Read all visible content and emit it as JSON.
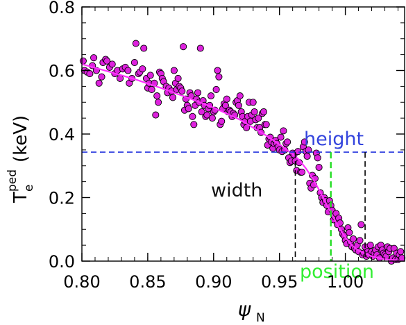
{
  "chart_data": {
    "type": "scatter",
    "xlim": [
      0.8,
      1.045
    ],
    "ylim": [
      0.0,
      0.8
    ],
    "xticks": [
      "0.80",
      "0.85",
      "0.90",
      "0.95",
      "1.00"
    ],
    "xtick_values": [
      0.8,
      0.85,
      0.9,
      0.95,
      1.0
    ],
    "yticks": [
      "0.0",
      "0.2",
      "0.4",
      "0.6",
      "0.8"
    ],
    "ytick_values": [
      0.0,
      0.2,
      0.4,
      0.6,
      0.8
    ],
    "xlabel": "ψ",
    "xlabel_sub": "N",
    "ylabel": "T",
    "ylabel_sub": "e",
    "ylabel_sup": "ped",
    "ylabel_unit": "(keV)",
    "grid": false,
    "colors": {
      "points": "#dd22dd",
      "fit": "#ff33ff",
      "height_line": "#2233dd",
      "width_lines": "#000000",
      "position_line": "#22dd22",
      "height_text": "#3344dd",
      "width_text": "#111111",
      "position_text": "#33ee33"
    },
    "annotations": {
      "height": {
        "label": "height",
        "y": 0.343
      },
      "width": {
        "label": "width",
        "x_left": 0.962,
        "x_right": 1.015
      },
      "position": {
        "label": "position",
        "x": 0.989
      }
    },
    "fit_curve": {
      "x": [
        0.8,
        0.82,
        0.84,
        0.86,
        0.88,
        0.9,
        0.92,
        0.94,
        0.95,
        0.96,
        0.965,
        0.97,
        0.975,
        0.98,
        0.985,
        0.99,
        0.995,
        1.0,
        1.005,
        1.01,
        1.02,
        1.03,
        1.045
      ],
      "y": [
        0.62,
        0.597,
        0.573,
        0.545,
        0.515,
        0.483,
        0.445,
        0.395,
        0.367,
        0.337,
        0.318,
        0.292,
        0.262,
        0.225,
        0.185,
        0.145,
        0.107,
        0.075,
        0.05,
        0.033,
        0.015,
        0.006,
        0.001
      ]
    },
    "points": [
      [
        0.801,
        0.63
      ],
      [
        0.802,
        0.6
      ],
      [
        0.804,
        0.595
      ],
      [
        0.806,
        0.59
      ],
      [
        0.808,
        0.615
      ],
      [
        0.809,
        0.64
      ],
      [
        0.811,
        0.6
      ],
      [
        0.813,
        0.56
      ],
      [
        0.815,
        0.58
      ],
      [
        0.816,
        0.625
      ],
      [
        0.818,
        0.635
      ],
      [
        0.819,
        0.63
      ],
      [
        0.821,
        0.61
      ],
      [
        0.823,
        0.62
      ],
      [
        0.825,
        0.59
      ],
      [
        0.827,
        0.6
      ],
      [
        0.829,
        0.575
      ],
      [
        0.831,
        0.605
      ],
      [
        0.833,
        0.61
      ],
      [
        0.835,
        0.6
      ],
      [
        0.836,
        0.56
      ],
      [
        0.838,
        0.575
      ],
      [
        0.84,
        0.625
      ],
      [
        0.841,
        0.685
      ],
      [
        0.843,
        0.59
      ],
      [
        0.844,
        0.595
      ],
      [
        0.846,
        0.605
      ],
      [
        0.847,
        0.67
      ],
      [
        0.849,
        0.575
      ],
      [
        0.85,
        0.545
      ],
      [
        0.851,
        0.56
      ],
      [
        0.852,
        0.585
      ],
      [
        0.853,
        0.54
      ],
      [
        0.855,
        0.56
      ],
      [
        0.856,
        0.46
      ],
      [
        0.857,
        0.52
      ],
      [
        0.858,
        0.5
      ],
      [
        0.859,
        0.595
      ],
      [
        0.86,
        0.59
      ],
      [
        0.861,
        0.575
      ],
      [
        0.862,
        0.565
      ],
      [
        0.864,
        0.55
      ],
      [
        0.865,
        0.53
      ],
      [
        0.866,
        0.545
      ],
      [
        0.868,
        0.535
      ],
      [
        0.869,
        0.515
      ],
      [
        0.87,
        0.6
      ],
      [
        0.871,
        0.56
      ],
      [
        0.872,
        0.54
      ],
      [
        0.873,
        0.575
      ],
      [
        0.874,
        0.55
      ],
      [
        0.875,
        0.545
      ],
      [
        0.876,
        0.535
      ],
      [
        0.877,
        0.675
      ],
      [
        0.878,
        0.475
      ],
      [
        0.879,
        0.51
      ],
      [
        0.88,
        0.49
      ],
      [
        0.881,
        0.48
      ],
      [
        0.882,
        0.53
      ],
      [
        0.883,
        0.52
      ],
      [
        0.884,
        0.455
      ],
      [
        0.885,
        0.43
      ],
      [
        0.886,
        0.49
      ],
      [
        0.887,
        0.51
      ],
      [
        0.888,
        0.53
      ],
      [
        0.889,
        0.5
      ],
      [
        0.89,
        0.67
      ],
      [
        0.891,
        0.47
      ],
      [
        0.892,
        0.505
      ],
      [
        0.893,
        0.49
      ],
      [
        0.894,
        0.455
      ],
      [
        0.895,
        0.46
      ],
      [
        0.896,
        0.48
      ],
      [
        0.897,
        0.49
      ],
      [
        0.898,
        0.52
      ],
      [
        0.899,
        0.45
      ],
      [
        0.9,
        0.47
      ],
      [
        0.901,
        0.475
      ],
      [
        0.902,
        0.54
      ],
      [
        0.903,
        0.6
      ],
      [
        0.904,
        0.58
      ],
      [
        0.905,
        0.43
      ],
      [
        0.906,
        0.44
      ],
      [
        0.907,
        0.48
      ],
      [
        0.908,
        0.495
      ],
      [
        0.909,
        0.49
      ],
      [
        0.91,
        0.51
      ],
      [
        0.911,
        0.47
      ],
      [
        0.912,
        0.475
      ],
      [
        0.913,
        0.47
      ],
      [
        0.914,
        0.455
      ],
      [
        0.915,
        0.465
      ],
      [
        0.916,
        0.46
      ],
      [
        0.917,
        0.5
      ],
      [
        0.918,
        0.505
      ],
      [
        0.919,
        0.49
      ],
      [
        0.92,
        0.52
      ],
      [
        0.921,
        0.47
      ],
      [
        0.922,
        0.455
      ],
      [
        0.923,
        0.43
      ],
      [
        0.924,
        0.44
      ],
      [
        0.925,
        0.42
      ],
      [
        0.926,
        0.455
      ],
      [
        0.927,
        0.5
      ],
      [
        0.928,
        0.44
      ],
      [
        0.929,
        0.46
      ],
      [
        0.93,
        0.5
      ],
      [
        0.931,
        0.47
      ],
      [
        0.932,
        0.445
      ],
      [
        0.933,
        0.42
      ],
      [
        0.934,
        0.45
      ],
      [
        0.935,
        0.42
      ],
      [
        0.936,
        0.405
      ],
      [
        0.937,
        0.465
      ],
      [
        0.938,
        0.47
      ],
      [
        0.939,
        0.43
      ],
      [
        0.94,
        0.43
      ],
      [
        0.941,
        0.365
      ],
      [
        0.942,
        0.385
      ],
      [
        0.943,
        0.39
      ],
      [
        0.944,
        0.375
      ],
      [
        0.945,
        0.355
      ],
      [
        0.946,
        0.37
      ],
      [
        0.947,
        0.38
      ],
      [
        0.948,
        0.37
      ],
      [
        0.949,
        0.36
      ],
      [
        0.95,
        0.35
      ],
      [
        0.951,
        0.39
      ],
      [
        0.952,
        0.345
      ],
      [
        0.953,
        0.41
      ],
      [
        0.954,
        0.35
      ],
      [
        0.955,
        0.37
      ],
      [
        0.956,
        0.375
      ],
      [
        0.957,
        0.325
      ],
      [
        0.958,
        0.31
      ],
      [
        0.959,
        0.315
      ],
      [
        0.96,
        0.34
      ],
      [
        0.961,
        0.335
      ],
      [
        0.962,
        0.315
      ],
      [
        0.963,
        0.285
      ],
      [
        0.964,
        0.345
      ],
      [
        0.965,
        0.31
      ],
      [
        0.966,
        0.28
      ],
      [
        0.967,
        0.28
      ],
      [
        0.968,
        0.36
      ],
      [
        0.969,
        0.375
      ],
      [
        0.97,
        0.345
      ],
      [
        0.971,
        0.33
      ],
      [
        0.972,
        0.35
      ],
      [
        0.973,
        0.245
      ],
      [
        0.974,
        0.23
      ],
      [
        0.975,
        0.27
      ],
      [
        0.976,
        0.24
      ],
      [
        0.977,
        0.26
      ],
      [
        0.978,
        0.34
      ],
      [
        0.979,
        0.325
      ],
      [
        0.98,
        0.295
      ],
      [
        0.981,
        0.215
      ],
      [
        0.982,
        0.2
      ],
      [
        0.983,
        0.185
      ],
      [
        0.984,
        0.2
      ],
      [
        0.985,
        0.19
      ],
      [
        0.986,
        0.175
      ],
      [
        0.987,
        0.155
      ],
      [
        0.988,
        0.19
      ],
      [
        0.989,
        0.175
      ],
      [
        0.99,
        0.16
      ],
      [
        0.991,
        0.13
      ],
      [
        0.992,
        0.14
      ],
      [
        0.993,
        0.15
      ],
      [
        0.994,
        0.115
      ],
      [
        0.995,
        0.135
      ],
      [
        0.996,
        0.12
      ],
      [
        0.997,
        0.1
      ],
      [
        0.998,
        0.085
      ],
      [
        0.999,
        0.08
      ],
      [
        1.0,
        0.065
      ],
      [
        1.001,
        0.055
      ],
      [
        1.002,
        0.105
      ],
      [
        1.003,
        0.09
      ],
      [
        1.004,
        0.06
      ],
      [
        1.005,
        0.045
      ],
      [
        1.006,
        0.07
      ],
      [
        1.007,
        0.04
      ],
      [
        1.008,
        0.035
      ],
      [
        1.009,
        0.05
      ],
      [
        1.01,
        0.03
      ],
      [
        1.011,
        0.065
      ],
      [
        1.012,
        0.115
      ],
      [
        1.013,
        0.02
      ],
      [
        1.014,
        0.025
      ],
      [
        1.015,
        0.045
      ],
      [
        1.016,
        0.015
      ],
      [
        1.017,
        0.03
      ],
      [
        1.018,
        0.02
      ],
      [
        1.019,
        0.05
      ],
      [
        1.02,
        0.03
      ],
      [
        1.021,
        0.015
      ],
      [
        1.022,
        0.025
      ],
      [
        1.023,
        0.035
      ],
      [
        1.024,
        0.02
      ],
      [
        1.025,
        0.045
      ],
      [
        1.026,
        0.01
      ],
      [
        1.027,
        0.05
      ],
      [
        1.028,
        0.035
      ],
      [
        1.029,
        0.025
      ],
      [
        1.03,
        0.02
      ],
      [
        1.031,
        0.015
      ],
      [
        1.032,
        0.045
      ],
      [
        1.033,
        0.03
      ],
      [
        1.034,
        0.04
      ],
      [
        1.035,
        0.0
      ],
      [
        1.036,
        0.01
      ],
      [
        1.037,
        0.04
      ],
      [
        1.038,
        0.005
      ],
      [
        1.039,
        0.025
      ],
      [
        1.04,
        0.005
      ],
      [
        1.041,
        0.02
      ],
      [
        1.042,
        0.03
      ],
      [
        1.043,
        0.01
      ]
    ]
  }
}
